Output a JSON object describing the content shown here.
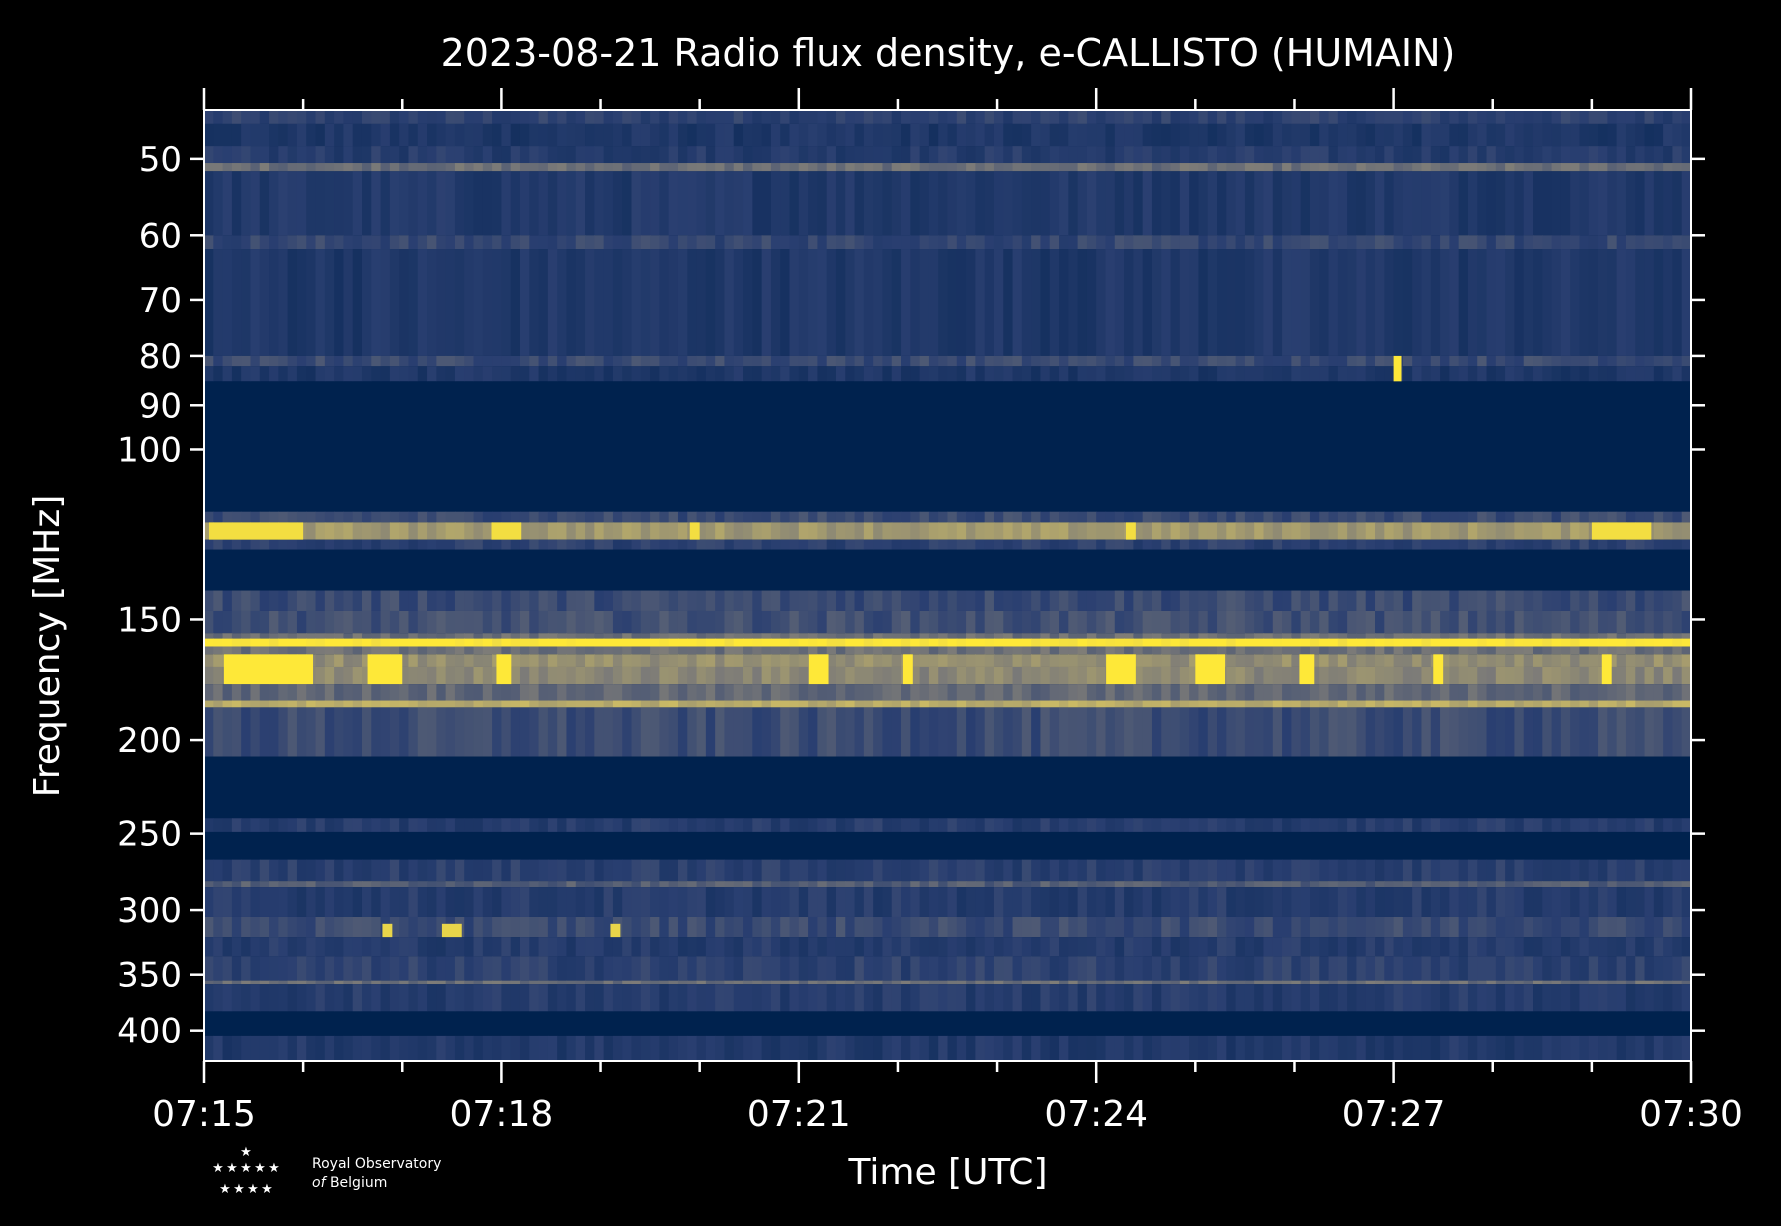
{
  "chart_data": {
    "type": "heatmap",
    "title": "2023-08-21 Radio flux density, e-CALLISTO (HUMAIN)",
    "xlabel": "Time [UTC]",
    "ylabel": "Frequency [MHz]",
    "x_ticks": [
      "07:15",
      "07:18",
      "07:21",
      "07:24",
      "07:27",
      "07:30"
    ],
    "x_range_minutes": [
      0,
      15
    ],
    "y_scale": "log",
    "y_ticks": [
      50,
      60,
      70,
      80,
      90,
      100,
      150,
      200,
      250,
      300,
      350,
      400
    ],
    "y_range": [
      44.5,
      430
    ],
    "colormap": [
      "#00224e",
      "#2a3f71",
      "#7c7b78",
      "#c8b866",
      "#fee838"
    ],
    "bands": [
      {
        "f": [
          44.5,
          46.0
        ],
        "level": 0.25
      },
      {
        "f": [
          46.0,
          48.5
        ],
        "level": 0.18
      },
      {
        "f": [
          48.5,
          50.5
        ],
        "level": 0.22
      },
      {
        "f": [
          50.5,
          51.5
        ],
        "level": 0.45
      },
      {
        "f": [
          51.5,
          60.0
        ],
        "level": 0.2
      },
      {
        "f": [
          60.0,
          62.0
        ],
        "level": 0.28
      },
      {
        "f": [
          62.0,
          80.0
        ],
        "level": 0.19
      },
      {
        "f": [
          80.0,
          82.0
        ],
        "level": 0.3
      },
      {
        "f": [
          82.0,
          85.0
        ],
        "level": 0.18
      },
      {
        "f": [
          85.0,
          116.0
        ],
        "level": 0.0
      },
      {
        "f": [
          116.0,
          119.0
        ],
        "level": 0.3
      },
      {
        "f": [
          119.0,
          124.0
        ],
        "level": 0.62
      },
      {
        "f": [
          124.0,
          127.0
        ],
        "level": 0.25
      },
      {
        "f": [
          127.0,
          140.0
        ],
        "level": 0.0
      },
      {
        "f": [
          140.0,
          147.0
        ],
        "level": 0.3
      },
      {
        "f": [
          147.0,
          155.0
        ],
        "level": 0.32
      },
      {
        "f": [
          155.0,
          157.0
        ],
        "level": 0.45
      },
      {
        "f": [
          157.0,
          160.0
        ],
        "level": 1.0
      },
      {
        "f": [
          160.0,
          163.0
        ],
        "level": 0.45
      },
      {
        "f": [
          163.0,
          168.0
        ],
        "level": 0.58
      },
      {
        "f": [
          168.0,
          175.0
        ],
        "level": 0.55
      },
      {
        "f": [
          175.0,
          182.0
        ],
        "level": 0.42
      },
      {
        "f": [
          182.0,
          185.0
        ],
        "level": 0.7
      },
      {
        "f": [
          185.0,
          208.0
        ],
        "level": 0.3
      },
      {
        "f": [
          208.0,
          241.0
        ],
        "level": 0.0
      },
      {
        "f": [
          241.0,
          249.0
        ],
        "level": 0.22
      },
      {
        "f": [
          249.0,
          266.0
        ],
        "level": 0.0
      },
      {
        "f": [
          266.0,
          280.0
        ],
        "level": 0.24
      },
      {
        "f": [
          280.0,
          284.0
        ],
        "level": 0.38
      },
      {
        "f": [
          284.0,
          305.0
        ],
        "level": 0.22
      },
      {
        "f": [
          305.0,
          320.0
        ],
        "level": 0.3
      },
      {
        "f": [
          320.0,
          335.0
        ],
        "level": 0.22
      },
      {
        "f": [
          335.0,
          355.0
        ],
        "level": 0.25
      },
      {
        "f": [
          355.0,
          358.0
        ],
        "level": 0.45
      },
      {
        "f": [
          358.0,
          382.0
        ],
        "level": 0.22
      },
      {
        "f": [
          382.0,
          405.0
        ],
        "level": 0.0
      },
      {
        "f": [
          405.0,
          430.0
        ],
        "level": 0.2
      }
    ],
    "bursts": [
      {
        "f": [
          119.0,
          124.0
        ],
        "level": 0.95,
        "t": [
          [
            0.05,
            1.0
          ],
          [
            2.9,
            3.2
          ],
          [
            4.9,
            5.0
          ],
          [
            9.3,
            9.4
          ],
          [
            14.0,
            14.6
          ]
        ]
      },
      {
        "f": [
          163.0,
          175.0
        ],
        "level": 1.0,
        "t": [
          [
            0.2,
            1.1
          ],
          [
            1.65,
            2.0
          ],
          [
            2.95,
            3.1
          ],
          [
            6.1,
            6.3
          ],
          [
            7.05,
            7.15
          ],
          [
            9.1,
            9.4
          ],
          [
            10.0,
            10.3
          ],
          [
            11.05,
            11.2
          ],
          [
            12.4,
            12.5
          ],
          [
            14.1,
            14.2
          ]
        ]
      },
      {
        "f": [
          310.0,
          320.0
        ],
        "level": 0.9,
        "t": [
          [
            1.8,
            1.9
          ],
          [
            2.4,
            2.6
          ],
          [
            4.1,
            4.2
          ]
        ]
      },
      {
        "f": [
          80.0,
          85.0
        ],
        "level": 1.0,
        "t": [
          [
            12.0,
            12.08
          ]
        ]
      }
    ]
  },
  "logo": {
    "line1": "Royal Observatory",
    "line2_italic": "of",
    "line2": "Belgium"
  }
}
